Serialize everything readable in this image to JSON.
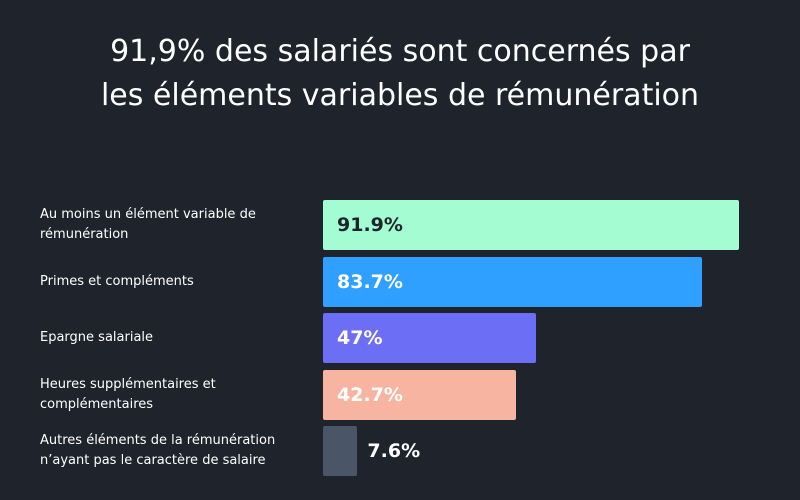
{
  "title": "91,9% des salariés sont concernés par\nles éléments variables de rémunération",
  "chart_data": {
    "type": "bar",
    "orientation": "horizontal",
    "title": "91,9% des salariés sont concernés par les éléments variables de rémunération",
    "categories": [
      "Au moins un élément variable de rémunération",
      "Primes et compléments",
      "Epargne salariale",
      "Heures supplémentaires et complémentaires",
      "Autres éléments de la rémunération n’ayant pas le caractère de salaire"
    ],
    "values": [
      91.9,
      83.7,
      47,
      42.7,
      7.6
    ],
    "value_labels": [
      "91.9%",
      "83.7%",
      "47%",
      "42.7%",
      "7.6%"
    ],
    "colors": [
      "#a4fcd2",
      "#2fa0ff",
      "#6c6ef6",
      "#f7b4a0",
      "#4b5568"
    ],
    "value_label_colors": [
      "#1f232b",
      "#ffffff",
      "#ffffff",
      "#ffffff",
      "#ffffff"
    ],
    "xlim": [
      0,
      100
    ],
    "xlabel": "",
    "ylabel": ""
  }
}
